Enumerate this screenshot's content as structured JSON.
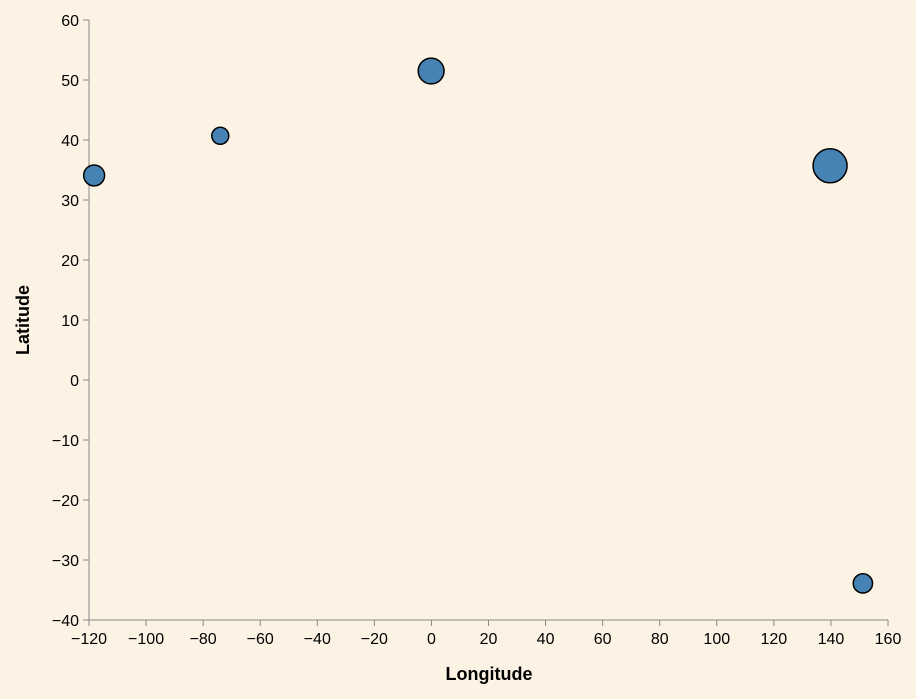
{
  "colors": {
    "background": "#fdf3e4",
    "point_fill": "#4682b4",
    "point_stroke": "#000000",
    "axis": "#888888"
  },
  "chart_data": {
    "type": "scatter",
    "title": "",
    "xlabel": "Longitude",
    "ylabel": "Latitude",
    "xlim": [
      -120,
      160
    ],
    "ylim": [
      -40,
      60
    ],
    "grid": false,
    "x_ticks": [
      -120,
      -100,
      -80,
      -60,
      -40,
      -20,
      0,
      20,
      40,
      60,
      80,
      100,
      120,
      140,
      160
    ],
    "y_ticks": [
      60,
      50,
      40,
      30,
      20,
      10,
      0,
      -10,
      -20,
      -30,
      -40
    ],
    "x_tick_labels": [
      "−120",
      "−100",
      "−80",
      "−60",
      "−40",
      "−20",
      "0",
      "20",
      "40",
      "60",
      "80",
      "100",
      "120",
      "140",
      "160"
    ],
    "y_tick_labels": [
      "60",
      "50",
      "40",
      "30",
      "20",
      "10",
      "0",
      "−10",
      "−20",
      "−30",
      "−40"
    ],
    "points": [
      {
        "x": -118.2,
        "y": 34.1,
        "size": 0.6
      },
      {
        "x": -74.0,
        "y": 40.7,
        "size": 0.48
      },
      {
        "x": -0.1,
        "y": 51.5,
        "size": 0.75
      },
      {
        "x": 139.7,
        "y": 35.7,
        "size": 1.0
      },
      {
        "x": 151.2,
        "y": -33.9,
        "size": 0.55
      }
    ]
  }
}
